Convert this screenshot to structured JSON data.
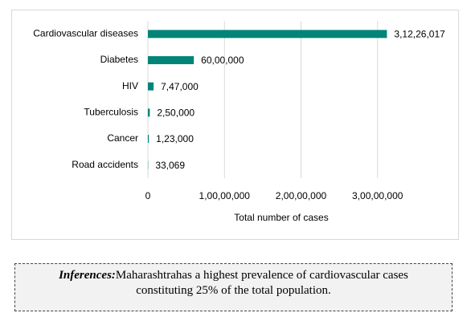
{
  "chart_data": {
    "type": "barh",
    "categories": [
      "Cardiovascular diseases",
      "Diabetes",
      "HIV",
      "Tuberculosis",
      "Cancer",
      "Road accidents"
    ],
    "values": [
      31226017,
      6000000,
      747000,
      250000,
      123000,
      33069
    ],
    "value_labels": [
      "3,12,26,017",
      "60,00,000",
      "7,47,000",
      "2,50,000",
      "1,23,000",
      "33,069"
    ],
    "color": "#038479",
    "x_label": "Total number of cases",
    "xlim": [
      0,
      40000000
    ],
    "xticks": [
      0,
      {
        "value": 10000000,
        "label": "1,00,00,000"
      },
      {
        "value": 20000000,
        "label": "2,00,00,000"
      },
      {
        "value": 30000000,
        "label": "3,00,00,000"
      }
    ],
    "grid": true
  },
  "inference": {
    "label": "Inferences:",
    "text": "Maharashtrahas a highest prevalence of cardiovascular cases constituting 25% of the total population."
  }
}
